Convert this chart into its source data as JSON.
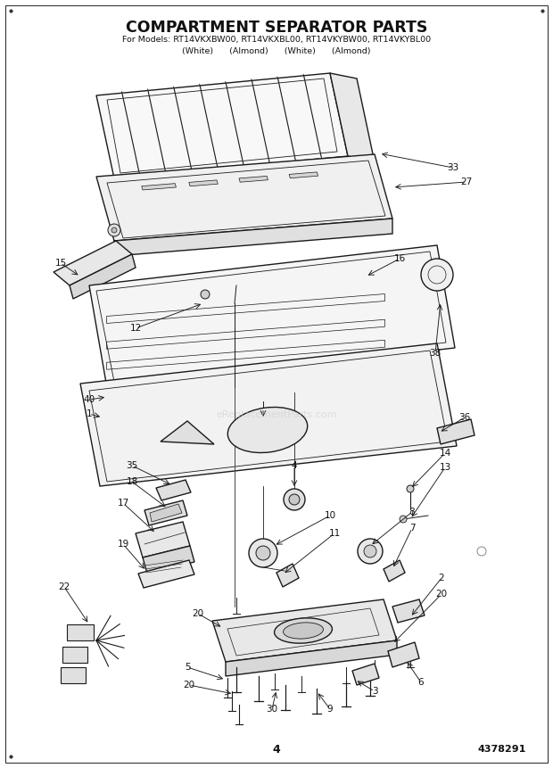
{
  "title": "COMPARTMENT SEPARATOR PARTS",
  "subtitle_line1": "For Models: RT14VKXBW00, RT14VKXBL00, RT14VKYBW00, RT14VKYBL00",
  "subtitle_line2_parts": [
    "(White)",
    "(Almond)",
    "(White)",
    "(Almond)"
  ],
  "page_number": "4",
  "part_number": "4378291",
  "background_color": "#ffffff",
  "fig_width": 6.2,
  "fig_height": 8.61,
  "dpi": 100,
  "watermark": "eReplacementParts.com"
}
